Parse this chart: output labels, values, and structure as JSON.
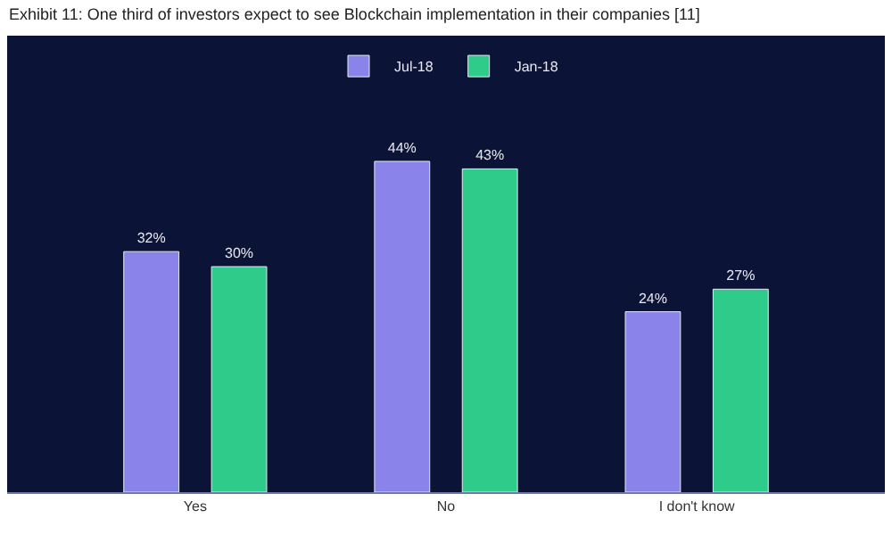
{
  "chart_data": {
    "type": "bar",
    "title": "Exhibit 11: One third of investors expect to see Blockchain implementation in their companies [11]",
    "categories": [
      "Yes",
      "No",
      "I don't know"
    ],
    "series": [
      {
        "name": "Jul-18",
        "color": "#8a84ea",
        "values": [
          32,
          44,
          24
        ],
        "value_labels": [
          "32%",
          "44%",
          "24%"
        ]
      },
      {
        "name": "Jan-18",
        "color": "#2fcb8a",
        "values": [
          30,
          43,
          27
        ],
        "value_labels": [
          "30%",
          "43%",
          "27%"
        ]
      }
    ],
    "legend": "top",
    "grid": false
  }
}
